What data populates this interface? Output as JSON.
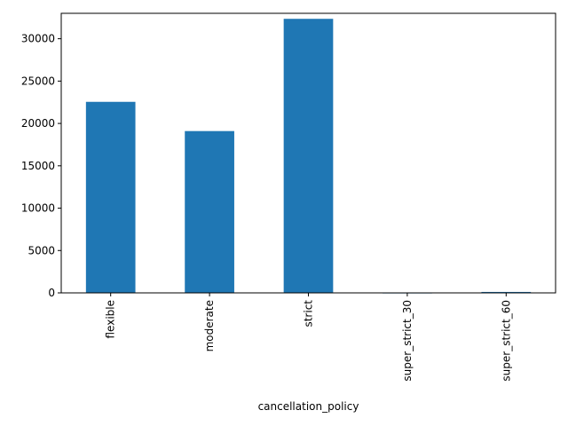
{
  "chart_data": {
    "type": "bar",
    "title": "",
    "xlabel": "cancellation_policy",
    "ylabel": "",
    "categories": [
      "flexible",
      "moderate",
      "strict",
      "super_strict_30",
      "super_strict_60"
    ],
    "values": [
      22550,
      19100,
      32350,
      40,
      110
    ],
    "ylim": [
      0,
      33000
    ],
    "yticks": [
      0,
      5000,
      10000,
      15000,
      20000,
      25000,
      30000
    ],
    "grid": false,
    "legend": "none",
    "colors": {
      "bar": "#1f77b4"
    }
  }
}
